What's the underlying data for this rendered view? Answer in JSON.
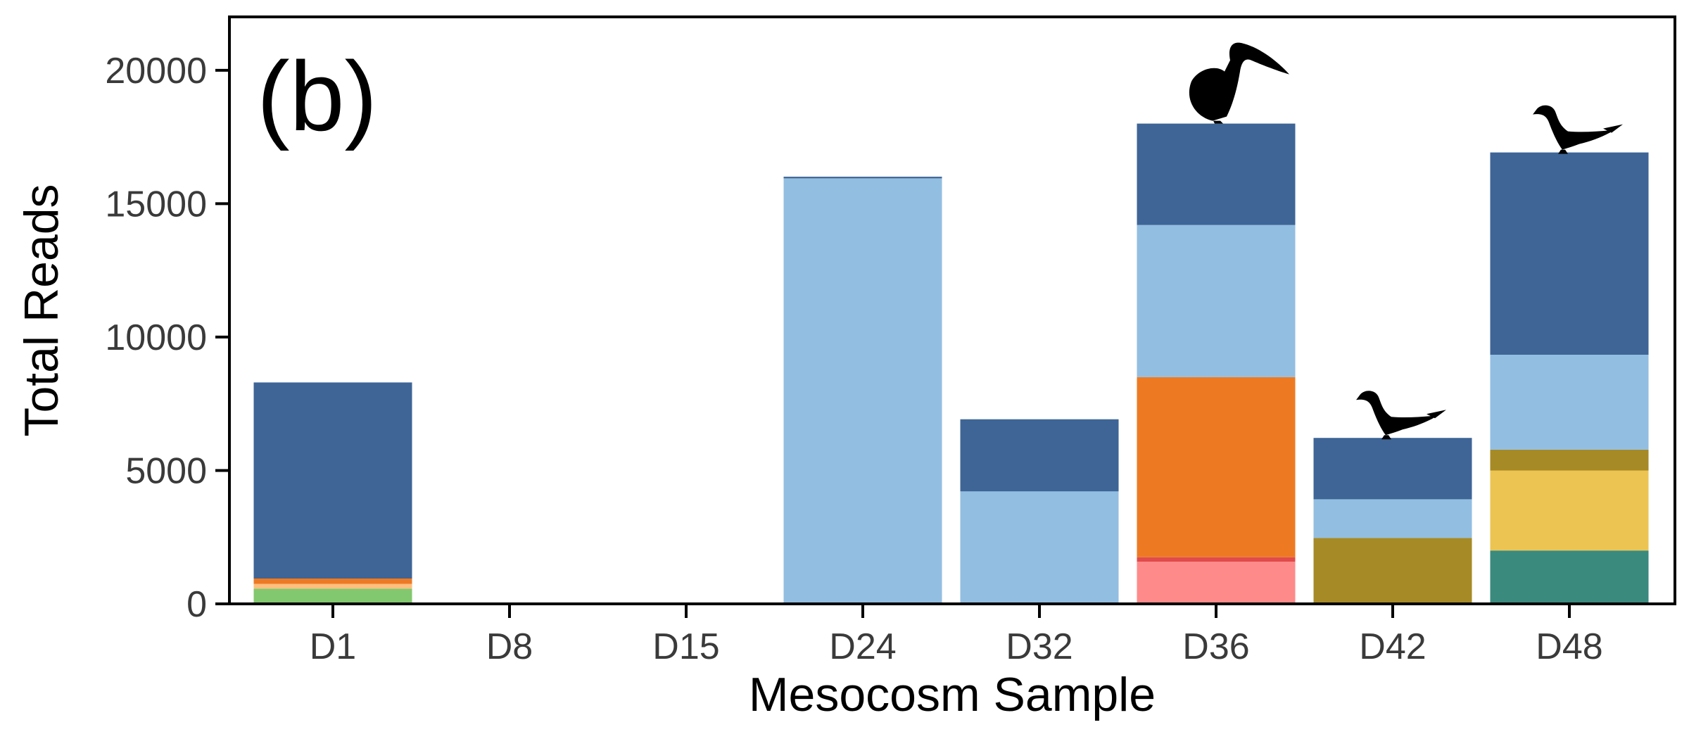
{
  "chart_data": {
    "type": "bar",
    "stacked": true,
    "panel_label": "(b)",
    "xlabel": "Mesocosm Sample",
    "ylabel": "Total Reads",
    "ylim": [
      0,
      22000
    ],
    "yticks": [
      0,
      5000,
      10000,
      15000,
      20000
    ],
    "yticks_labels": [
      "0",
      "5000",
      "10000",
      "15000",
      "20000"
    ],
    "grid": false,
    "legend": "none",
    "categories": [
      "D1",
      "D8",
      "D15",
      "D24",
      "D32",
      "D36",
      "D42",
      "D48"
    ],
    "series": [
      {
        "color": "#3a8a7e",
        "values": [
          0,
          0,
          0,
          0,
          0,
          0,
          0,
          2000
        ]
      },
      {
        "color": "#ecc452",
        "values": [
          0,
          0,
          0,
          0,
          0,
          0,
          0,
          3000
        ]
      },
      {
        "color": "#a68a25",
        "values": [
          0,
          0,
          0,
          0,
          0,
          0,
          2470,
          780
        ]
      },
      {
        "color": "#82c86e",
        "values": [
          570,
          0,
          0,
          0,
          0,
          0,
          0,
          0
        ]
      },
      {
        "color": "#ffbe7d",
        "values": [
          180,
          0,
          0,
          0,
          0,
          0,
          0,
          0
        ]
      },
      {
        "color": "#ff8a8a",
        "values": [
          0,
          0,
          0,
          0,
          0,
          1580,
          0,
          0
        ]
      },
      {
        "color": "#e14b4b",
        "values": [
          0,
          0,
          0,
          0,
          0,
          170,
          0,
          0
        ]
      },
      {
        "color": "#ed7a23",
        "values": [
          200,
          0,
          0,
          0,
          0,
          6750,
          0,
          0
        ]
      },
      {
        "color": "#92bee1",
        "values": [
          0,
          0,
          0,
          15950,
          4220,
          5700,
          1450,
          3560
        ]
      },
      {
        "color": "#3e6596",
        "values": [
          7350,
          0,
          0,
          60,
          2700,
          3800,
          2300,
          7580
        ]
      }
    ],
    "annotations": [
      {
        "category": "D36",
        "icon": "pelican-silhouette-icon"
      },
      {
        "category": "D42",
        "icon": "seabird-silhouette-icon"
      },
      {
        "category": "D48",
        "icon": "seabird-silhouette-icon"
      }
    ]
  }
}
